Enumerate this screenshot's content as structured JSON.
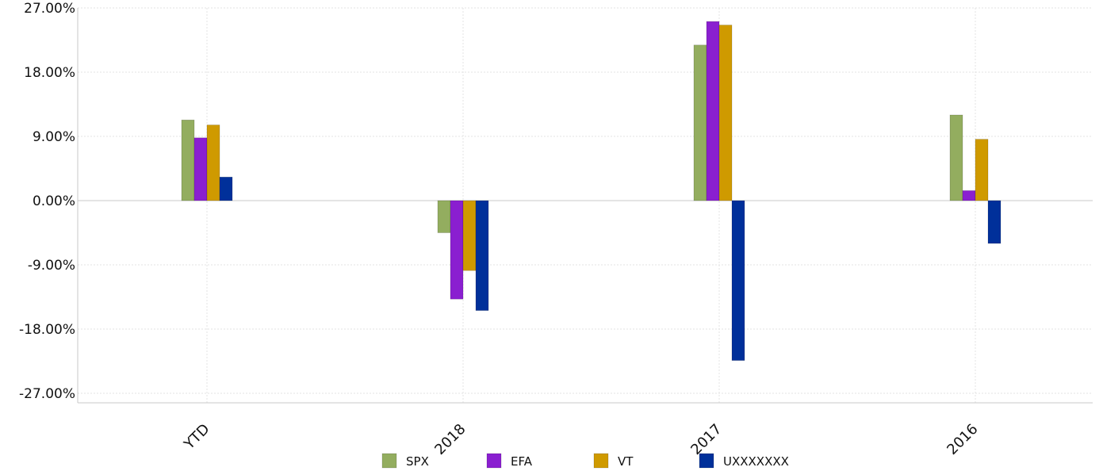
{
  "chart_data": {
    "type": "bar",
    "title": "",
    "xlabel": "",
    "ylabel": "",
    "categories": [
      "YTD",
      "2018",
      "2017",
      "2016"
    ],
    "ylim": [
      -27,
      27
    ],
    "y_ticks": [
      27,
      18,
      9,
      0,
      -9,
      -18,
      -27
    ],
    "y_tick_labels": [
      "27.00%",
      "18.00%",
      "9.00%",
      "0.00%",
      "-9.00%",
      "-18.00%",
      "-27.00%"
    ],
    "grid": true,
    "legend_position": "bottom",
    "series": [
      {
        "name": "SPX",
        "color": "#93ad5f",
        "values": [
          11.3,
          -4.5,
          21.8,
          12.0
        ]
      },
      {
        "name": "EFA",
        "color": "#8a1fd0",
        "values": [
          8.8,
          -13.8,
          25.1,
          1.4
        ]
      },
      {
        "name": "VT",
        "color": "#cf9a00",
        "values": [
          10.6,
          -9.8,
          24.6,
          8.6
        ]
      },
      {
        "name": "UXXXXXXX",
        "color": "#00309a",
        "values": [
          3.3,
          -15.4,
          -22.4,
          -6.0
        ]
      }
    ]
  }
}
